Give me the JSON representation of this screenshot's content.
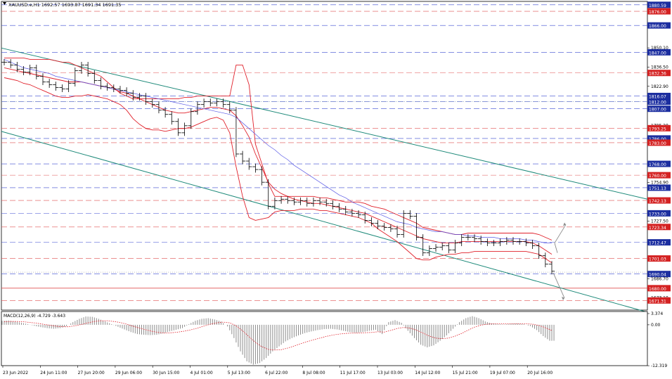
{
  "chart_data": [
    {
      "type": "candlestick",
      "title": "XAUUSD.e,H1  1692.57 1693.87 1691.34 1691.35",
      "ylim": [
        1664.5,
        1883.0
      ],
      "yticks": [
        "1880.59",
        "1876.00",
        "1866.00",
        "1850.10",
        "1847.00",
        "1836.50",
        "1832.36",
        "1822.90",
        "1816.07",
        "1812.00",
        "1807.00",
        "1795.20",
        "1793.25",
        "1786.00",
        "1783.00",
        "1768.00",
        "1760.00",
        "1754.90",
        "1751.13",
        "1742.13",
        "1733.00",
        "1727.50",
        "1723.34",
        "1712.47",
        "1701.03",
        "1690.04",
        "1686.70",
        "1680.00",
        "1673.10",
        "1671.31"
      ],
      "xticks": [
        "23 Jun 2022",
        "24 Jun 11:00",
        "27 Jun 20:00",
        "29 Jun 06:00",
        "30 Jun 15:00",
        "4 Jul 01:00",
        "5 Jul 13:00",
        "6 Jul 22:00",
        "8 Jul 08:00",
        "11 Jul 17:00",
        "13 Jul 03:00",
        "14 Jul 12:00",
        "15 Jul 21:00",
        "19 Jul 07:00",
        "20 Jul 16:00"
      ],
      "series": [
        {
          "key": "price",
          "color": "#000000",
          "values": [
            1840,
            1838,
            1835,
            1833,
            1836,
            1830,
            1826,
            1824,
            1822,
            1821,
            1825,
            1834,
            1838,
            1832,
            1827,
            1823,
            1822,
            1821,
            1820,
            1818,
            1815,
            1816,
            1812,
            1810,
            1806,
            1803,
            1798,
            1790,
            1795,
            1805,
            1810,
            1812,
            1811,
            1812,
            1810,
            1806,
            1775,
            1770,
            1766,
            1764,
            1755,
            1738,
            1742,
            1743,
            1742,
            1741,
            1742,
            1740,
            1742,
            1741,
            1740,
            1738,
            1736,
            1734,
            1733,
            1732,
            1728,
            1726,
            1724,
            1723,
            1722,
            1718,
            1733,
            1731,
            1716,
            1705,
            1708,
            1709,
            1710,
            1707,
            1712,
            1716,
            1716,
            1715,
            1713,
            1712,
            1712,
            1713,
            1714,
            1713,
            1713,
            1712,
            1710,
            1703,
            1697,
            1692
          ]
        },
        {
          "key": "bb_upper",
          "color": "#e0202a",
          "values": [
            1843,
            1843,
            1843,
            1843,
            1842,
            1842,
            1842,
            1842,
            1841,
            1840,
            1840,
            1838,
            1836,
            1834,
            1832,
            1830,
            1826,
            1822,
            1818,
            1816,
            1814,
            1814,
            1814,
            1814,
            1814,
            1814,
            1814,
            1814,
            1815,
            1815,
            1816,
            1816,
            1816,
            1816,
            1816,
            1816,
            1838,
            1838,
            1824,
            1782,
            1768,
            1754,
            1745,
            1745,
            1745,
            1745,
            1745,
            1745,
            1745,
            1744,
            1744,
            1743,
            1742,
            1741,
            1741,
            1741,
            1740,
            1738,
            1737,
            1736,
            1734,
            1732,
            1730,
            1728,
            1726,
            1723,
            1722,
            1721,
            1720,
            1719,
            1718,
            1718,
            1719,
            1719,
            1719,
            1719,
            1719,
            1719,
            1719,
            1719,
            1719,
            1719,
            1719,
            1718,
            1716,
            1714
          ]
        },
        {
          "key": "bb_middle",
          "color": "#e0202a",
          "values": [
            1836,
            1835,
            1834,
            1833,
            1832,
            1831,
            1830,
            1829,
            1828,
            1827,
            1826,
            1826,
            1826,
            1825,
            1824,
            1823,
            1822,
            1821,
            1819,
            1818,
            1816,
            1814,
            1812,
            1810,
            1808,
            1806,
            1805,
            1804,
            1804,
            1805,
            1806,
            1807,
            1808,
            1808,
            1807,
            1806,
            1802,
            1795,
            1787,
            1775,
            1765,
            1755,
            1750,
            1747,
            1745,
            1743,
            1742,
            1741,
            1740,
            1740,
            1739,
            1738,
            1737,
            1736,
            1735,
            1734,
            1733,
            1731,
            1729,
            1727,
            1725,
            1723,
            1721,
            1719,
            1717,
            1715,
            1714,
            1713,
            1712,
            1712,
            1712,
            1713,
            1713,
            1713,
            1713,
            1713,
            1713,
            1713,
            1713,
            1713,
            1713,
            1713,
            1712,
            1710,
            1707,
            1704
          ]
        },
        {
          "key": "bb_lower",
          "color": "#e0202a",
          "values": [
            1829,
            1828,
            1827,
            1825,
            1824,
            1822,
            1820,
            1818,
            1816,
            1815,
            1815,
            1816,
            1816,
            1817,
            1816,
            1815,
            1814,
            1812,
            1810,
            1806,
            1800,
            1796,
            1793,
            1792,
            1792,
            1791,
            1792,
            1793,
            1793,
            1794,
            1796,
            1798,
            1800,
            1801,
            1799,
            1790,
            1766,
            1745,
            1730,
            1728,
            1729,
            1730,
            1734,
            1735,
            1735,
            1735,
            1736,
            1736,
            1736,
            1735,
            1735,
            1734,
            1733,
            1732,
            1731,
            1730,
            1728,
            1726,
            1722,
            1719,
            1716,
            1713,
            1709,
            1705,
            1701,
            1700,
            1700,
            1702,
            1703,
            1704,
            1704,
            1705,
            1705,
            1706,
            1706,
            1706,
            1706,
            1706,
            1706,
            1706,
            1706,
            1706,
            1705,
            1704,
            1701,
            1698
          ]
        },
        {
          "key": "ma_blue",
          "color": "#5a5ae6",
          "values": [
            1842,
            1840,
            1838,
            1836,
            1835,
            1834,
            1833,
            1832,
            1830,
            1829,
            1828,
            1827,
            1826,
            1825,
            1824,
            1823,
            1822,
            1821,
            1820,
            1819,
            1818,
            1817,
            1816,
            1815,
            1814,
            1813,
            1812,
            1811,
            1810,
            1809,
            1808,
            1807,
            1806,
            1805,
            1804,
            1803,
            1801,
            1797,
            1793,
            1789,
            1785,
            1781,
            1778,
            1774,
            1771,
            1767,
            1764,
            1761,
            1758,
            1755,
            1752,
            1749,
            1746,
            1744,
            1741,
            1739,
            1737,
            1735,
            1733,
            1731,
            1729,
            1727,
            1726,
            1725,
            1723,
            1722,
            1721,
            1720,
            1720,
            1719,
            1718,
            1718,
            1717,
            1717,
            1716,
            1716,
            1716,
            1715,
            1715,
            1715,
            1715,
            1714,
            1714,
            1713,
            1712,
            1712
          ]
        }
      ]
    },
    {
      "type": "bar",
      "title": "MACD(12,26,9) -4.729 -3.643",
      "ylim": [
        -12.3,
        4.0
      ],
      "yticks": [
        "3.374",
        "0.00",
        "-12.319"
      ],
      "series": [
        {
          "key": "macd",
          "color": "#8c8c8c",
          "values": [
            1.2,
            1.3,
            1.0,
            0.6,
            0.2,
            -0.3,
            -0.7,
            -1.0,
            -1.2,
            -1.0,
            -0.4,
            0.8,
            1.8,
            2.5,
            2.4,
            1.8,
            1.0,
            0.2,
            -0.6,
            -1.4,
            -2.2,
            -2.8,
            -3.0,
            -3.1,
            -3.0,
            -2.6,
            -2.0,
            -1.5,
            -1.0,
            0.2,
            1.2,
            1.8,
            2.0,
            1.6,
            1.0,
            -0.5,
            -4.0,
            -8.0,
            -11.0,
            -12.0,
            -11.5,
            -10.0,
            -8.0,
            -6.5,
            -5.0,
            -4.0,
            -3.2,
            -2.5,
            -2.0,
            -1.6,
            -1.3,
            -1.2,
            -1.4,
            -1.8,
            -2.2,
            -2.4,
            -2.2,
            -1.8,
            -1.5,
            -2.8,
            0.8,
            1.4,
            0.6,
            -1.8,
            -4.0,
            -6.0,
            -6.8,
            -6.2,
            -4.8,
            -3.2,
            -1.2,
            0.8,
            2.0,
            2.6,
            2.0,
            1.0,
            0.4,
            0.2,
            0.1,
            0.3,
            0.4,
            0.2,
            -0.4,
            -1.6,
            -3.4,
            -4.8
          ]
        },
        {
          "key": "signal",
          "color": "#e0202a",
          "values": [
            0.9,
            1.0,
            1.0,
            0.9,
            0.7,
            0.5,
            0.2,
            -0.1,
            -0.4,
            -0.6,
            -0.6,
            -0.3,
            0.1,
            0.6,
            1.0,
            1.2,
            1.2,
            1.0,
            0.7,
            0.2,
            -0.4,
            -1.0,
            -1.5,
            -2.0,
            -2.3,
            -2.5,
            -2.4,
            -2.2,
            -1.9,
            -1.5,
            -1.0,
            -0.4,
            0.2,
            0.6,
            0.8,
            0.6,
            -0.3,
            -1.8,
            -3.6,
            -5.3,
            -6.6,
            -7.4,
            -7.6,
            -7.5,
            -7.0,
            -6.4,
            -5.7,
            -5.1,
            -4.5,
            -4.0,
            -3.5,
            -3.1,
            -2.8,
            -2.6,
            -2.5,
            -2.5,
            -2.4,
            -2.3,
            -2.1,
            -2.2,
            -1.7,
            -1.1,
            -0.8,
            -1.0,
            -1.6,
            -2.5,
            -3.4,
            -4.0,
            -4.2,
            -4.0,
            -3.4,
            -2.6,
            -1.6,
            -0.7,
            -0.1,
            0.2,
            0.3,
            0.3,
            0.3,
            0.3,
            0.3,
            0.3,
            0.2,
            -0.2,
            -0.9,
            -1.7
          ]
        }
      ]
    }
  ]
}
